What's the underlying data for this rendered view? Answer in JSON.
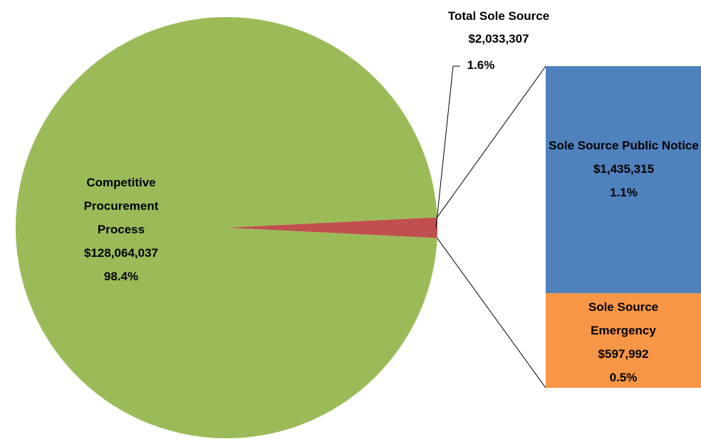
{
  "chart_data": {
    "type": "pie_of_bar",
    "pie": {
      "categories": [
        "Competitive Procurement Process",
        "Total Sole Source"
      ],
      "values": [
        128064037,
        2033307
      ],
      "value_labels": [
        "$128,064,037",
        "$2,033,307"
      ],
      "percent_labels": [
        "98.4%",
        "1.6%"
      ],
      "colors": [
        "#9bbb59",
        "#c0504d"
      ]
    },
    "bar": {
      "categories": [
        "Sole Source Public Notice",
        "Sole Source Emergency"
      ],
      "values": [
        1435315,
        597992
      ],
      "value_labels": [
        "$1,435,315",
        "$597,992"
      ],
      "percent_labels": [
        "1.1%",
        "0.5%"
      ],
      "colors": [
        "#4f81bd",
        "#f79646"
      ]
    }
  }
}
